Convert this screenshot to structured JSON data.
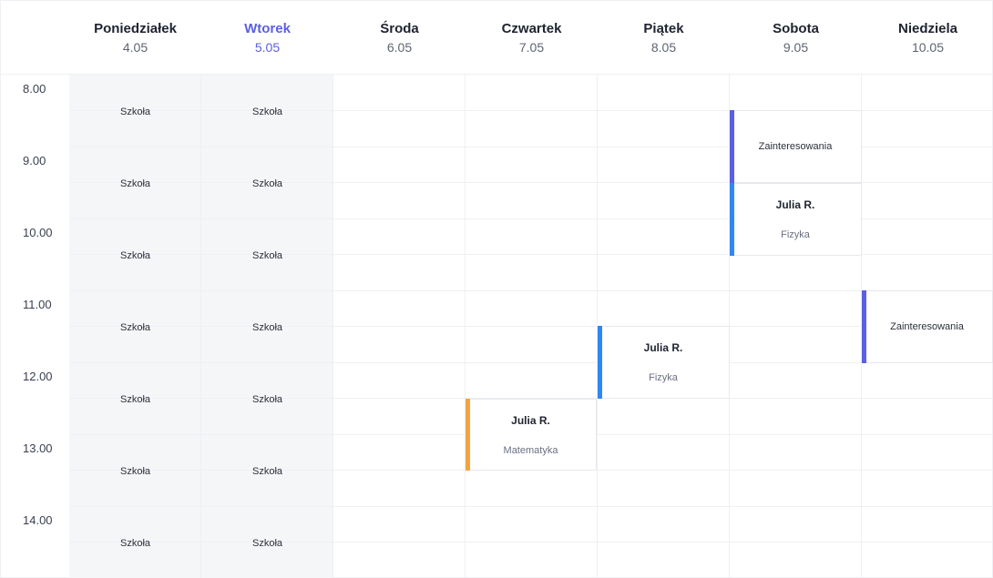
{
  "days": [
    {
      "name": "Poniedziałek",
      "date": "4.05"
    },
    {
      "name": "Wtorek",
      "date": "5.05"
    },
    {
      "name": "Środa",
      "date": "6.05"
    },
    {
      "name": "Czwartek",
      "date": "7.05"
    },
    {
      "name": "Piątek",
      "date": "8.05"
    },
    {
      "name": "Sobota",
      "date": "9.05"
    },
    {
      "name": "Niedziela",
      "date": "10.05"
    }
  ],
  "active_day": "Wtorek",
  "times": [
    "8.00",
    "9.00",
    "10.00",
    "11.00",
    "12.00",
    "13.00",
    "14.00"
  ],
  "school_label": "Szkoła",
  "events": {
    "thursday": {
      "title": "Julia R.",
      "subject": "Matematyka",
      "color": "#f4a340"
    },
    "friday": {
      "title": "Julia R.",
      "subject": "Fizyka",
      "color": "#2f86f6"
    },
    "saturday_interests": {
      "label": "Zainteresowania",
      "color": "#5b5fe6"
    },
    "saturday_lesson": {
      "title": "Julia R.",
      "subject": "Fizyka",
      "color": "#2f86f6"
    },
    "sunday_interests": {
      "label": "Zainteresowania",
      "color": "#5b5fe6"
    }
  },
  "colors": {
    "accent": "#5b5fe6",
    "shaded": "#f5f6f8",
    "grid": "#eef0f3"
  }
}
